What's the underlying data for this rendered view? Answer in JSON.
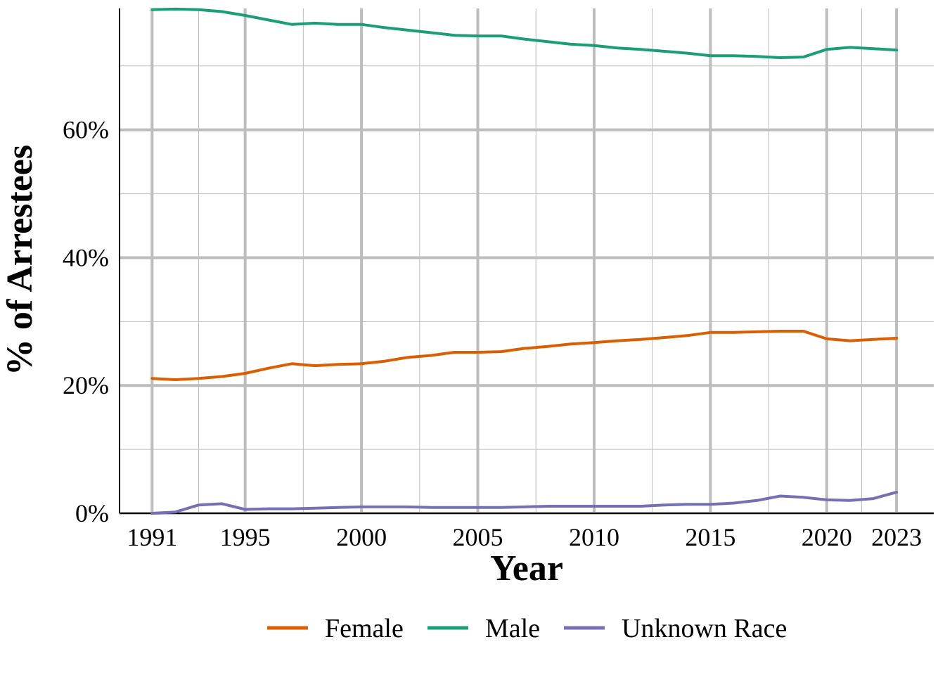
{
  "chart_data": {
    "type": "line",
    "title": "",
    "xlabel": "Year",
    "ylabel": "% of Arrestees",
    "xlim": [
      1989.6,
      2024.6
    ],
    "ylim": [
      0,
      79
    ],
    "x_ticks": [
      1991,
      1995,
      2000,
      2005,
      2010,
      2015,
      2020,
      2023
    ],
    "x_tick_labels": [
      "1991",
      "1995",
      "2000",
      "2005",
      "2010",
      "2015",
      "2020",
      "2023"
    ],
    "y_ticks": [
      0,
      20,
      40,
      60
    ],
    "y_tick_labels": [
      "0%",
      "20%",
      "40%",
      "60%"
    ],
    "grid": true,
    "legend_position": "bottom",
    "x": [
      1991,
      1992,
      1993,
      1994,
      1995,
      1996,
      1997,
      1998,
      1999,
      2000,
      2001,
      2002,
      2003,
      2004,
      2005,
      2006,
      2007,
      2008,
      2009,
      2010,
      2011,
      2012,
      2013,
      2014,
      2015,
      2016,
      2017,
      2018,
      2019,
      2020,
      2021,
      2022,
      2023
    ],
    "series": [
      {
        "name": "Female",
        "color": "#d95f02",
        "values": [
          21.1,
          20.9,
          21.1,
          21.4,
          21.9,
          22.7,
          23.4,
          23.1,
          23.3,
          23.4,
          23.8,
          24.4,
          24.7,
          25.2,
          25.2,
          25.3,
          25.8,
          26.1,
          26.5,
          26.7,
          27.0,
          27.2,
          27.5,
          27.8,
          28.3,
          28.3,
          28.4,
          28.5,
          28.5,
          27.3,
          27.0,
          27.2,
          27.4
        ]
      },
      {
        "name": "Male",
        "color": "#1b9e77",
        "values": [
          78.8,
          78.9,
          78.8,
          78.5,
          77.9,
          77.2,
          76.5,
          76.7,
          76.5,
          76.5,
          76.0,
          75.6,
          75.2,
          74.8,
          74.7,
          74.7,
          74.2,
          73.8,
          73.4,
          73.2,
          72.8,
          72.6,
          72.3,
          72.0,
          71.6,
          71.6,
          71.5,
          71.3,
          71.4,
          72.6,
          72.9,
          72.7,
          72.5
        ]
      },
      {
        "name": "Unknown Race",
        "color": "#7570b3",
        "values": [
          0.0,
          0.2,
          1.3,
          1.5,
          0.6,
          0.7,
          0.7,
          0.8,
          0.9,
          1.0,
          1.0,
          1.0,
          0.9,
          0.9,
          0.9,
          0.9,
          1.0,
          1.1,
          1.1,
          1.1,
          1.1,
          1.1,
          1.3,
          1.4,
          1.4,
          1.6,
          2.0,
          2.7,
          2.5,
          2.1,
          2.0,
          2.3,
          3.3
        ]
      }
    ]
  }
}
